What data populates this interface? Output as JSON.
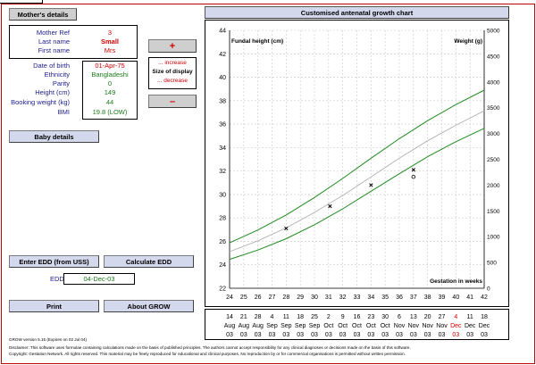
{
  "left_panel": {
    "mothers_details_btn": "Mother's details",
    "fields": [
      {
        "label": "Mother Ref",
        "value": "3",
        "style": "red"
      },
      {
        "label": "Last name",
        "value": "Small",
        "style": "redbold"
      },
      {
        "label": "First name",
        "value": "Mrs",
        "style": "red"
      },
      {
        "label": "Date of birth",
        "value": "01-Apr-75",
        "style": "red"
      },
      {
        "label": "Ethnicity",
        "value": "Bangladeshi",
        "style": "green"
      },
      {
        "label": "Parity",
        "value": "0",
        "style": "green"
      },
      {
        "label": "Height (cm)",
        "value": "149",
        "style": "green"
      },
      {
        "label": "Booking weight (kg)",
        "value": "44",
        "style": "green"
      },
      {
        "label": "BMI",
        "value": "19.8 (LOW)",
        "style": "green"
      }
    ],
    "plus_label": "+",
    "minus_label": "–",
    "size_display": {
      "increase": "... increase",
      "title": "Size of display",
      "decrease": "... decrease"
    },
    "baby_details_btn": "Baby details",
    "enter_edd_btn": "Enter EDD (from USS)",
    "calculate_edd_btn": "Calculate EDD",
    "edd_label": "EDD",
    "edd_value": "04-Dec-03",
    "print_btn": "Print",
    "about_btn": "About GROW"
  },
  "chart": {
    "header": "Customised antenatal growth chart",
    "left_axis_title": "Fundal height (cm)",
    "right_axis_title": "Weight (g)",
    "x_axis_title": "Gestation in weeks",
    "colors": {
      "band": "#1f8a1f",
      "median": "#b0b0b0",
      "grid": "#c8c8c8",
      "marker": "#000000"
    }
  },
  "chart_data": {
    "type": "line",
    "xlim": [
      24,
      42
    ],
    "x_ticks": [
      24,
      25,
      26,
      27,
      28,
      29,
      30,
      31,
      32,
      33,
      34,
      35,
      36,
      37,
      38,
      39,
      40,
      41,
      42
    ],
    "left_ylim": [
      22,
      44
    ],
    "left_y_ticks": [
      22,
      24,
      26,
      28,
      30,
      32,
      34,
      36,
      38,
      40,
      42,
      44
    ],
    "right_ylim": [
      0,
      5000
    ],
    "right_y_ticks": [
      0,
      500,
      1000,
      1500,
      2000,
      2500,
      3000,
      3500,
      4000,
      4500,
      5000
    ],
    "series": [
      {
        "style": "upper",
        "x": [
          24,
          26,
          28,
          30,
          32,
          34,
          36,
          38,
          40,
          42
        ],
        "y": [
          880,
          1130,
          1420,
          1760,
          2130,
          2520,
          2900,
          3250,
          3560,
          3840
        ]
      },
      {
        "style": "median",
        "x": [
          24,
          26,
          28,
          30,
          32,
          34,
          36,
          38,
          40,
          42
        ],
        "y": [
          710,
          920,
          1170,
          1470,
          1800,
          2160,
          2520,
          2860,
          3160,
          3440
        ]
      },
      {
        "style": "lower",
        "x": [
          24,
          26,
          28,
          30,
          32,
          34,
          36,
          38,
          40,
          42
        ],
        "y": [
          560,
          740,
          960,
          1230,
          1540,
          1880,
          2220,
          2550,
          2840,
          3100
        ]
      }
    ],
    "measurements": [
      {
        "week": 28,
        "fundal_height_cm": 27.1,
        "type": "cross"
      },
      {
        "week": 31.1,
        "fundal_height_cm": 29.0,
        "type": "cross"
      },
      {
        "week": 34,
        "fundal_height_cm": 30.8,
        "type": "cross"
      },
      {
        "week": 37,
        "fundal_height_cm": 32.1,
        "type": "cross"
      },
      {
        "week": 37,
        "fundal_height_cm": 31.5,
        "type": "circle"
      }
    ],
    "date_axis": [
      {
        "d": "14",
        "m": "Aug",
        "y": "03"
      },
      {
        "d": "21",
        "m": "Aug",
        "y": "03"
      },
      {
        "d": "28",
        "m": "Aug",
        "y": "03"
      },
      {
        "d": "4",
        "m": "Sep",
        "y": "03"
      },
      {
        "d": "11",
        "m": "Sep",
        "y": "03"
      },
      {
        "d": "18",
        "m": "Sep",
        "y": "03"
      },
      {
        "d": "25",
        "m": "Sep",
        "y": "03"
      },
      {
        "d": "2",
        "m": "Oct",
        "y": "03"
      },
      {
        "d": "9",
        "m": "Oct",
        "y": "03"
      },
      {
        "d": "16",
        "m": "Oct",
        "y": "03"
      },
      {
        "d": "23",
        "m": "Oct",
        "y": "03"
      },
      {
        "d": "30",
        "m": "Oct",
        "y": "03"
      },
      {
        "d": "6",
        "m": "Nov",
        "y": "03"
      },
      {
        "d": "13",
        "m": "Nov",
        "y": "03"
      },
      {
        "d": "20",
        "m": "Nov",
        "y": "03"
      },
      {
        "d": "27",
        "m": "Nov",
        "y": "03"
      },
      {
        "d": "4",
        "m": "Dec",
        "y": "03",
        "highlight": true
      },
      {
        "d": "11",
        "m": "Dec",
        "y": "03"
      },
      {
        "d": "18",
        "m": "Dec",
        "y": "03"
      }
    ]
  },
  "footer": {
    "version": "GROW version 5.15 (Expires on 02 Jul 04)",
    "disclaimer": "Disclaimer: This software uses formulae containing calculations made on the basis of published principles. The authors cannot accept responsibility for any clinical diagnoses or decisions made on the basis of this software.",
    "copyright": "Copyright: Gestation Network. All rights reserved. This material may be freely reproduced for educational and clinical purposes. No reproduction by or for commercial organisations is permitted without written permission."
  }
}
